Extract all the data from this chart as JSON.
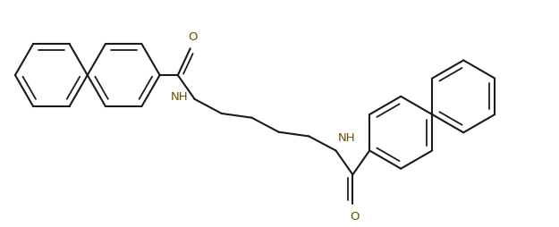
{
  "bg_color": "#ffffff",
  "line_color": "#1a1a1a",
  "label_color": "#6b5000",
  "lw": 1.5,
  "figsize": [
    6.25,
    2.54
  ],
  "dpi": 100,
  "r": 0.16,
  "xlim": [
    0,
    2.46
  ],
  "ylim": [
    0,
    1.0
  ]
}
